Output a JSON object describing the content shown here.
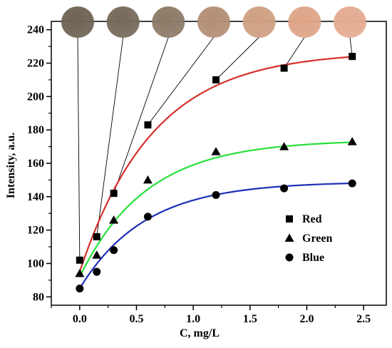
{
  "chart_data": {
    "type": "scatter",
    "xlabel": "C, mg/L",
    "ylabel": "Intensity, a.u.",
    "xlim": [
      -0.25,
      2.7
    ],
    "ylim": [
      75,
      245
    ],
    "xticks": [
      0.0,
      0.5,
      1.0,
      1.5,
      2.0,
      2.5
    ],
    "xtick_labels": [
      "0.0",
      "0.5",
      "1.0",
      "1.5",
      "2.0",
      "2.5"
    ],
    "yticks": [
      80,
      100,
      120,
      140,
      160,
      180,
      200,
      220,
      240
    ],
    "ytick_labels": [
      "80",
      "100",
      "120",
      "140",
      "160",
      "180",
      "200",
      "220",
      "240"
    ],
    "legend_position": "center-right",
    "grid": false,
    "x": [
      0.0,
      0.15,
      0.3,
      0.6,
      1.2,
      1.8,
      2.4
    ],
    "series": [
      {
        "name": "Red",
        "marker": "square",
        "color": "#d62f2a",
        "values": [
          102,
          116,
          142,
          183,
          210,
          217,
          224
        ],
        "fit": {
          "y0": 95,
          "a": 132,
          "k": 1.55
        }
      },
      {
        "name": "Green",
        "marker": "triangle",
        "color": "#27e03a",
        "values": [
          94,
          105,
          126,
          150,
          167,
          170,
          173
        ],
        "fit": {
          "y0": 92,
          "a": 82,
          "k": 1.7
        }
      },
      {
        "name": "Blue",
        "marker": "circle",
        "color": "#1d2fb8",
        "values": [
          85,
          95,
          108,
          128,
          141,
          145,
          148
        ],
        "fit": {
          "y0": 85,
          "a": 64,
          "k": 1.75
        }
      }
    ],
    "color_swatches": [
      "#6d6354",
      "#76695a",
      "#8c7a66",
      "#b38e75",
      "#cf9f82",
      "#dea487",
      "#e3ab90"
    ]
  }
}
